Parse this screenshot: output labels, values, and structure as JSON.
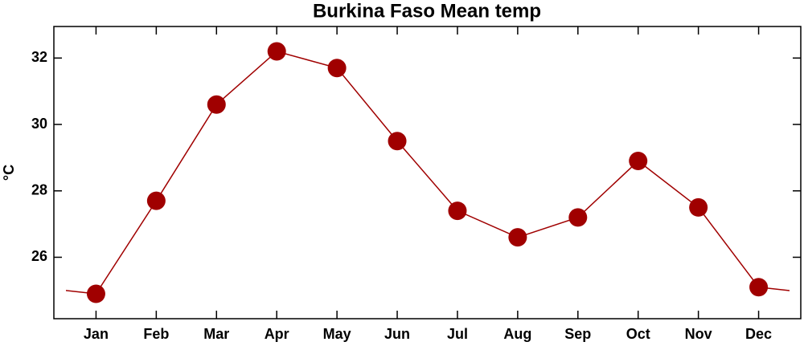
{
  "chart_data": {
    "type": "line",
    "title": "Burkina Faso Mean temp",
    "y_label": "°C",
    "categories": [
      "Jan",
      "Feb",
      "Mar",
      "Apr",
      "May",
      "Jun",
      "Jul",
      "Aug",
      "Sep",
      "Oct",
      "Nov",
      "Dec"
    ],
    "values": [
      24.9,
      27.7,
      30.6,
      32.2,
      31.7,
      29.5,
      27.4,
      26.6,
      27.2,
      28.9,
      27.5,
      25.1
    ],
    "color": "#a00000",
    "ylim": [
      24.15,
      32.95
    ],
    "yticks": [
      26,
      28,
      30,
      32
    ],
    "grid": false
  }
}
